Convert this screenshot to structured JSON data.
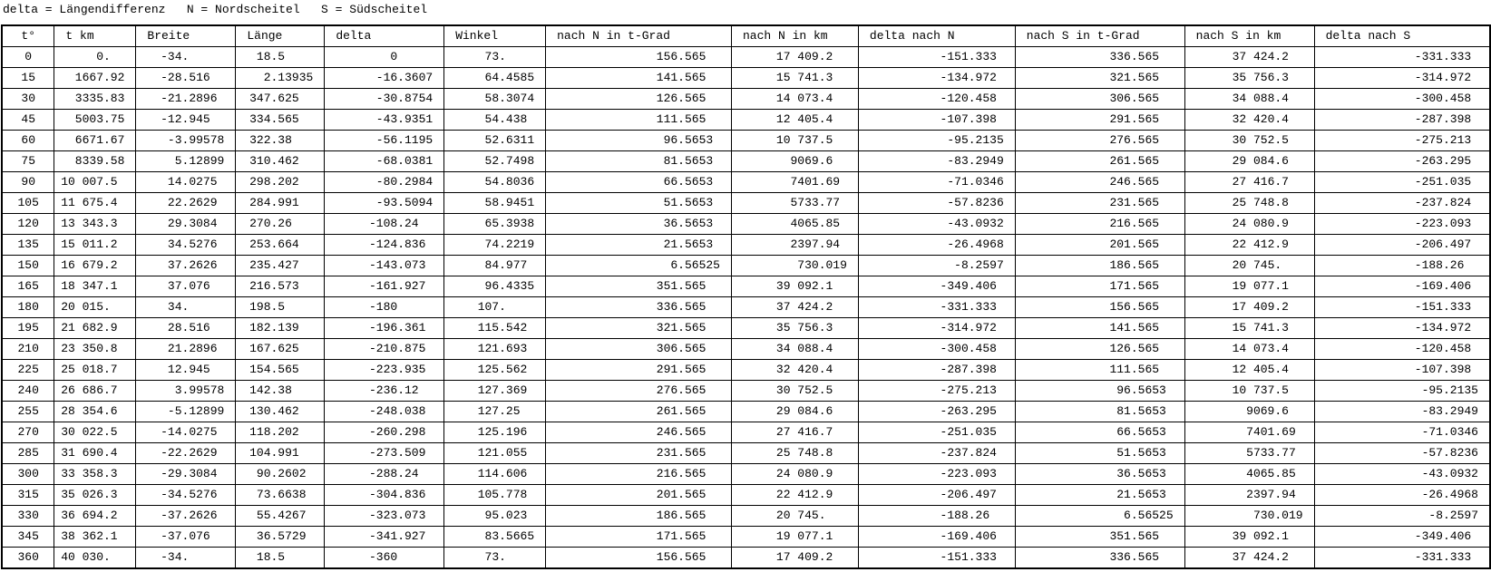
{
  "chart_data": {
    "type": "table",
    "title": "delta = Längendifferenz   N = Nordscheitel   S = Südscheitel",
    "columns": [
      "t°",
      "t km",
      "Breite",
      "Länge",
      "delta",
      "Winkel",
      "nach N in t-Grad",
      "nach N in km",
      "delta nach N",
      "nach S in t-Grad",
      "nach S in km",
      "delta nach S"
    ],
    "rows": [
      [
        "0",
        "0.",
        "-34.",
        "18.5",
        "0",
        "73.",
        "156.565",
        "17 409.2",
        "-151.333",
        "336.565",
        "37 424.2",
        "-331.333"
      ],
      [
        "15",
        "1667.92",
        "-28.516",
        "2.13935",
        "-16.3607",
        "64.4585",
        "141.565",
        "15 741.3",
        "-134.972",
        "321.565",
        "35 756.3",
        "-314.972"
      ],
      [
        "30",
        "3335.83",
        "-21.2896",
        "347.625",
        "-30.8754",
        "58.3074",
        "126.565",
        "14 073.4",
        "-120.458",
        "306.565",
        "34 088.4",
        "-300.458"
      ],
      [
        "45",
        "5003.75",
        "-12.945",
        "334.565",
        "-43.9351",
        "54.438",
        "111.565",
        "12 405.4",
        "-107.398",
        "291.565",
        "32 420.4",
        "-287.398"
      ],
      [
        "60",
        "6671.67",
        "-3.99578",
        "322.38",
        "-56.1195",
        "52.6311",
        "96.5653",
        "10 737.5",
        "-95.2135",
        "276.565",
        "30 752.5",
        "-275.213"
      ],
      [
        "75",
        "8339.58",
        "5.12899",
        "310.462",
        "-68.0381",
        "52.7498",
        "81.5653",
        "9069.6",
        "-83.2949",
        "261.565",
        "29 084.6",
        "-263.295"
      ],
      [
        "90",
        "10 007.5",
        "14.0275",
        "298.202",
        "-80.2984",
        "54.8036",
        "66.5653",
        "7401.69",
        "-71.0346",
        "246.565",
        "27 416.7",
        "-251.035"
      ],
      [
        "105",
        "11 675.4",
        "22.2629",
        "284.991",
        "-93.5094",
        "58.9451",
        "51.5653",
        "5733.77",
        "-57.8236",
        "231.565",
        "25 748.8",
        "-237.824"
      ],
      [
        "120",
        "13 343.3",
        "29.3084",
        "270.26",
        "-108.24",
        "65.3938",
        "36.5653",
        "4065.85",
        "-43.0932",
        "216.565",
        "24 080.9",
        "-223.093"
      ],
      [
        "135",
        "15 011.2",
        "34.5276",
        "253.664",
        "-124.836",
        "74.2219",
        "21.5653",
        "2397.94",
        "-26.4968",
        "201.565",
        "22 412.9",
        "-206.497"
      ],
      [
        "150",
        "16 679.2",
        "37.2626",
        "235.427",
        "-143.073",
        "84.977",
        "6.56525",
        "730.019",
        "-8.2597",
        "186.565",
        "20 745.",
        "-188.26"
      ],
      [
        "165",
        "18 347.1",
        "37.076",
        "216.573",
        "-161.927",
        "96.4335",
        "351.565",
        "39 092.1",
        "-349.406",
        "171.565",
        "19 077.1",
        "-169.406"
      ],
      [
        "180",
        "20 015.",
        "34.",
        "198.5",
        "-180",
        "107.",
        "336.565",
        "37 424.2",
        "-331.333",
        "156.565",
        "17 409.2",
        "-151.333"
      ],
      [
        "195",
        "21 682.9",
        "28.516",
        "182.139",
        "-196.361",
        "115.542",
        "321.565",
        "35 756.3",
        "-314.972",
        "141.565",
        "15 741.3",
        "-134.972"
      ],
      [
        "210",
        "23 350.8",
        "21.2896",
        "167.625",
        "-210.875",
        "121.693",
        "306.565",
        "34 088.4",
        "-300.458",
        "126.565",
        "14 073.4",
        "-120.458"
      ],
      [
        "225",
        "25 018.7",
        "12.945",
        "154.565",
        "-223.935",
        "125.562",
        "291.565",
        "32 420.4",
        "-287.398",
        "111.565",
        "12 405.4",
        "-107.398"
      ],
      [
        "240",
        "26 686.7",
        "3.99578",
        "142.38",
        "-236.12",
        "127.369",
        "276.565",
        "30 752.5",
        "-275.213",
        "96.5653",
        "10 737.5",
        "-95.2135"
      ],
      [
        "255",
        "28 354.6",
        "-5.12899",
        "130.462",
        "-248.038",
        "127.25",
        "261.565",
        "29 084.6",
        "-263.295",
        "81.5653",
        "9069.6",
        "-83.2949"
      ],
      [
        "270",
        "30 022.5",
        "-14.0275",
        "118.202",
        "-260.298",
        "125.196",
        "246.565",
        "27 416.7",
        "-251.035",
        "66.5653",
        "7401.69",
        "-71.0346"
      ],
      [
        "285",
        "31 690.4",
        "-22.2629",
        "104.991",
        "-273.509",
        "121.055",
        "231.565",
        "25 748.8",
        "-237.824",
        "51.5653",
        "5733.77",
        "-57.8236"
      ],
      [
        "300",
        "33 358.3",
        "-29.3084",
        "90.2602",
        "-288.24",
        "114.606",
        "216.565",
        "24 080.9",
        "-223.093",
        "36.5653",
        "4065.85",
        "-43.0932"
      ],
      [
        "315",
        "35 026.3",
        "-34.5276",
        "73.6638",
        "-304.836",
        "105.778",
        "201.565",
        "22 412.9",
        "-206.497",
        "21.5653",
        "2397.94",
        "-26.4968"
      ],
      [
        "330",
        "36 694.2",
        "-37.2626",
        "55.4267",
        "-323.073",
        "95.023",
        "186.565",
        "20 745.",
        "-188.26",
        "6.56525",
        "730.019",
        "-8.2597"
      ],
      [
        "345",
        "38 362.1",
        "-37.076",
        "36.5729",
        "-341.927",
        "83.5665",
        "171.565",
        "19 077.1",
        "-169.406",
        "351.565",
        "39 092.1",
        "-349.406"
      ],
      [
        "360",
        "40 030.",
        "-34.",
        "18.5",
        "-360",
        "73.",
        "156.565",
        "17 409.2",
        "-151.333",
        "336.565",
        "37 424.2",
        "-331.333"
      ]
    ]
  }
}
